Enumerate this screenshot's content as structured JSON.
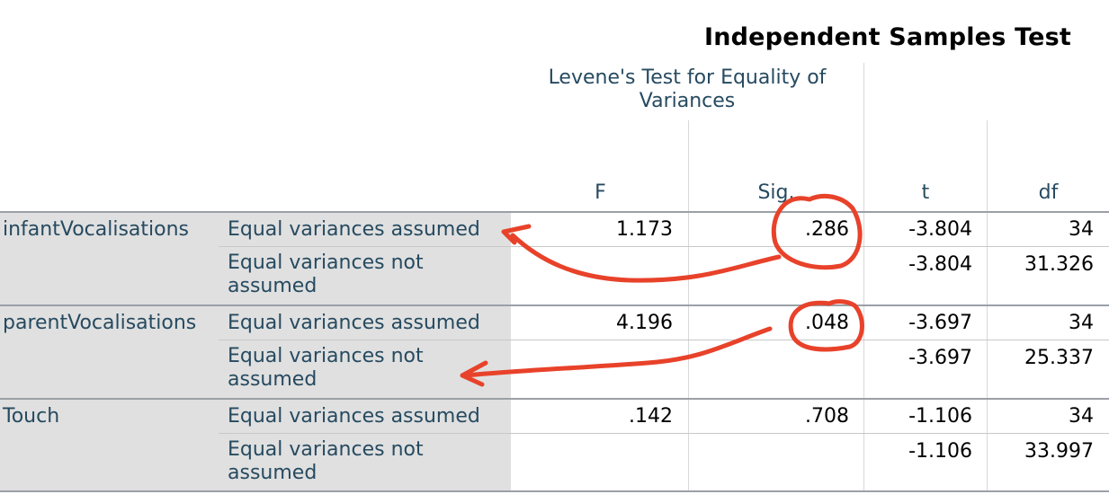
{
  "title": "Independent Samples Test",
  "group_header": "Levene's Test for Equality of Variances",
  "columns": [
    "F",
    "Sig.",
    "t",
    "df"
  ],
  "rows": [
    {
      "variable": "infantVocalisations",
      "sub": [
        {
          "label": "Equal variances assumed",
          "F": "1.173",
          "Sig": ".286",
          "t": "-3.804",
          "df": "34"
        },
        {
          "label": "Equal variances not assumed",
          "F": "",
          "Sig": "",
          "t": "-3.804",
          "df": "31.326"
        }
      ]
    },
    {
      "variable": "parentVocalisations",
      "sub": [
        {
          "label": "Equal variances assumed",
          "F": "4.196",
          "Sig": ".048",
          "t": "-3.697",
          "df": "34"
        },
        {
          "label": "Equal variances not assumed",
          "F": "",
          "Sig": "",
          "t": "-3.697",
          "df": "25.337"
        }
      ]
    },
    {
      "variable": "Touch",
      "sub": [
        {
          "label": "Equal variances assumed",
          "F": ".142",
          "Sig": ".708",
          "t": "-1.106",
          "df": "34"
        },
        {
          "label": "Equal variances not assumed",
          "F": "",
          "Sig": "",
          "t": "-1.106",
          "df": "33.997"
        }
      ]
    }
  ],
  "annotation_color": "#e8422a"
}
